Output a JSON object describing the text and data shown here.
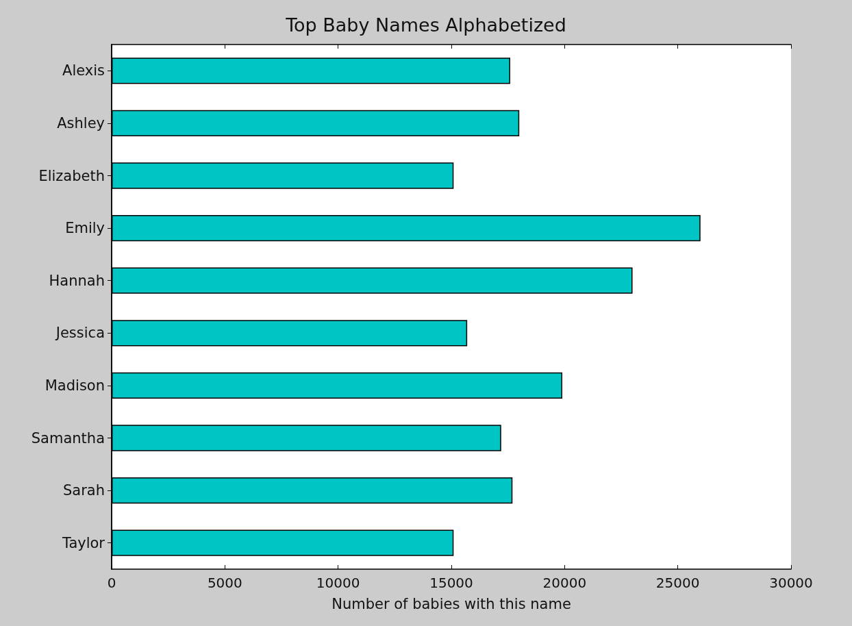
{
  "chart_data": {
    "type": "bar",
    "orientation": "horizontal",
    "title": "Top Baby Names Alphabetized",
    "xlabel": "Number of babies with this name",
    "categories": [
      "Alexis",
      "Ashley",
      "Elizabeth",
      "Emily",
      "Hannah",
      "Jessica",
      "Madison",
      "Samantha",
      "Sarah",
      "Taylor"
    ],
    "values": [
      17600,
      18000,
      15100,
      26000,
      23000,
      15700,
      19900,
      17200,
      17700,
      15100
    ],
    "color": "#00c5c5",
    "xlim": [
      0,
      30000
    ],
    "xticks": [
      0,
      5000,
      10000,
      15000,
      20000,
      25000,
      30000
    ],
    "grid": false
  }
}
